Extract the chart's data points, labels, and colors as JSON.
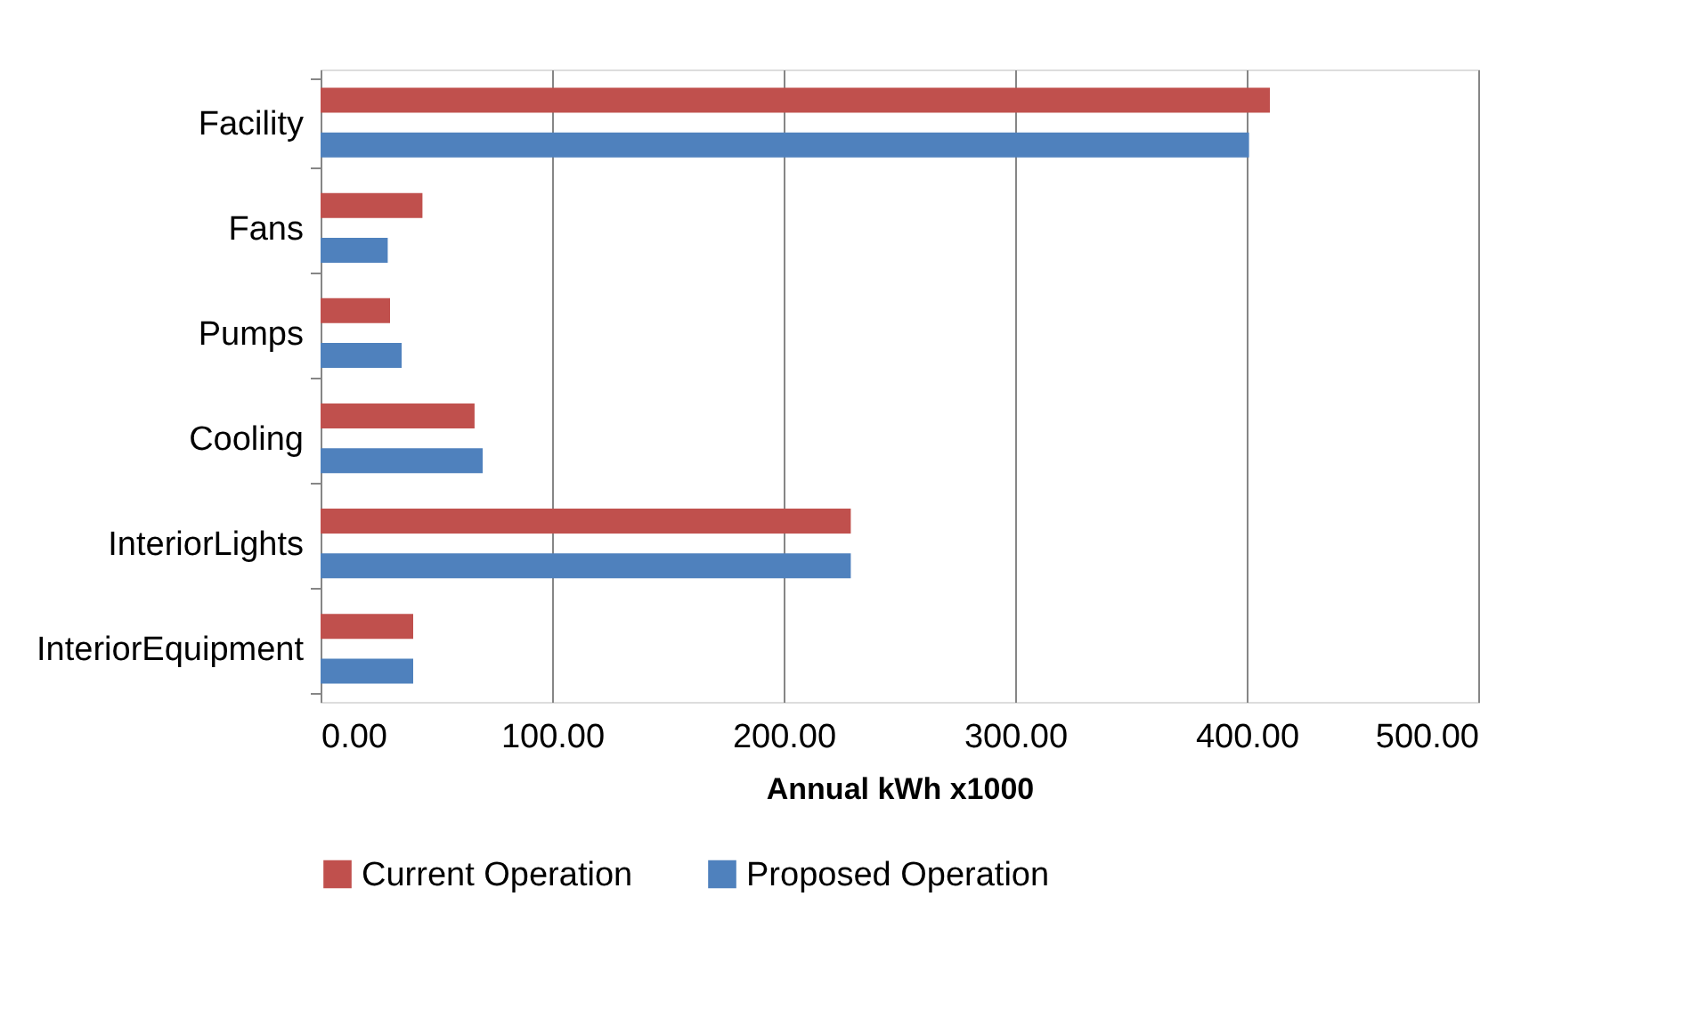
{
  "chart_data": {
    "type": "bar",
    "orientation": "horizontal",
    "xlabel": "Annual kWh x1000",
    "categories": [
      "Facility",
      "Fans",
      "Pumps",
      "Cooling",
      "InteriorLights",
      "InteriorEquipment"
    ],
    "series": [
      {
        "name": "Current Operation",
        "color": "#c0504d",
        "values": [
          410,
          44,
          30,
          66.5,
          229,
          40
        ]
      },
      {
        "name": "Proposed Operation",
        "color": "#4f81bd",
        "values": [
          401,
          29,
          35,
          70,
          229,
          40
        ]
      }
    ],
    "xlim": [
      0,
      500
    ],
    "xticks": [
      {
        "value": 0,
        "label": "0.00"
      },
      {
        "value": 100,
        "label": "100.00"
      },
      {
        "value": 200,
        "label": "200.00"
      },
      {
        "value": 300,
        "label": "300.00"
      },
      {
        "value": 400,
        "label": "400.00"
      },
      {
        "value": 500,
        "label": "500.00"
      }
    ],
    "grid": "x",
    "legend": "bottom"
  }
}
